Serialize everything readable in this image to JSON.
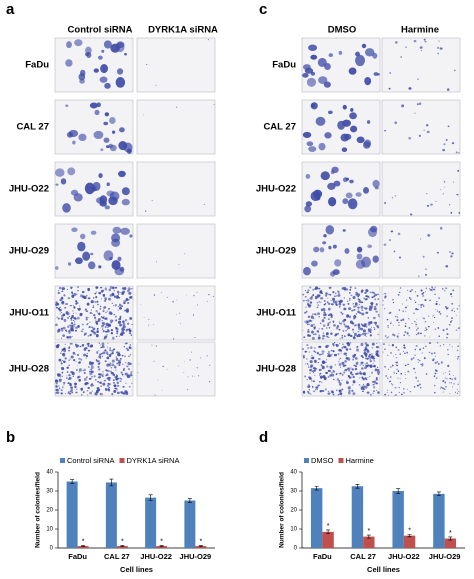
{
  "image_panels": [
    {
      "label": "a",
      "columns": [
        "Control siRNA",
        "DYRK1A siRNA"
      ],
      "rows": [
        "FaDu",
        "CAL 27",
        "JHU-O22",
        "JHU-O29",
        "JHU-O11",
        "JHU-O28"
      ]
    },
    {
      "label": "c",
      "columns": [
        "DMSO",
        "Harmine"
      ],
      "rows": [
        "FaDu",
        "CAL 27",
        "JHU-O22",
        "JHU-O29",
        "JHU-O11",
        "JHU-O28"
      ]
    }
  ],
  "chart_data": [
    {
      "type": "bar",
      "label": "b",
      "ylabel": "Number of colonies/field",
      "xlabel": "Cell lines",
      "categories": [
        "FaDu",
        "CAL 27",
        "JHU-O22",
        "JHU-O29"
      ],
      "series": [
        {
          "name": "Control siRNA",
          "color": "#4f81bd",
          "values": [
            35,
            34.5,
            26.5,
            25
          ],
          "errors": [
            1,
            1.8,
            1.5,
            1
          ]
        },
        {
          "name": "DYRK1A siRNA",
          "color": "#c0504d",
          "values": [
            1,
            1,
            1,
            1
          ],
          "errors": [
            0.3,
            0.3,
            0.3,
            0.3
          ],
          "annotations": [
            "*",
            "*",
            "*",
            "*"
          ]
        }
      ],
      "ylim": [
        0,
        40
      ],
      "yticks": [
        0,
        10,
        20,
        30,
        40
      ]
    },
    {
      "type": "bar",
      "label": "d",
      "ylabel": "Number of colonies/field",
      "xlabel": "Cell lines",
      "categories": [
        "FaDu",
        "CAL 27",
        "JHU-O22",
        "JHU-O29"
      ],
      "series": [
        {
          "name": "DMSO",
          "color": "#4f81bd",
          "values": [
            31.5,
            32.5,
            30,
            28.5
          ],
          "errors": [
            1,
            1,
            1.2,
            1
          ]
        },
        {
          "name": "Harmine",
          "color": "#c0504d",
          "values": [
            8.5,
            6,
            6.5,
            5
          ],
          "errors": [
            1,
            0.8,
            0.6,
            0.8
          ],
          "annotations": [
            "*",
            "*",
            "*",
            "*"
          ]
        }
      ],
      "ylim": [
        0,
        40
      ],
      "yticks": [
        0,
        10,
        20,
        30,
        40
      ]
    }
  ]
}
